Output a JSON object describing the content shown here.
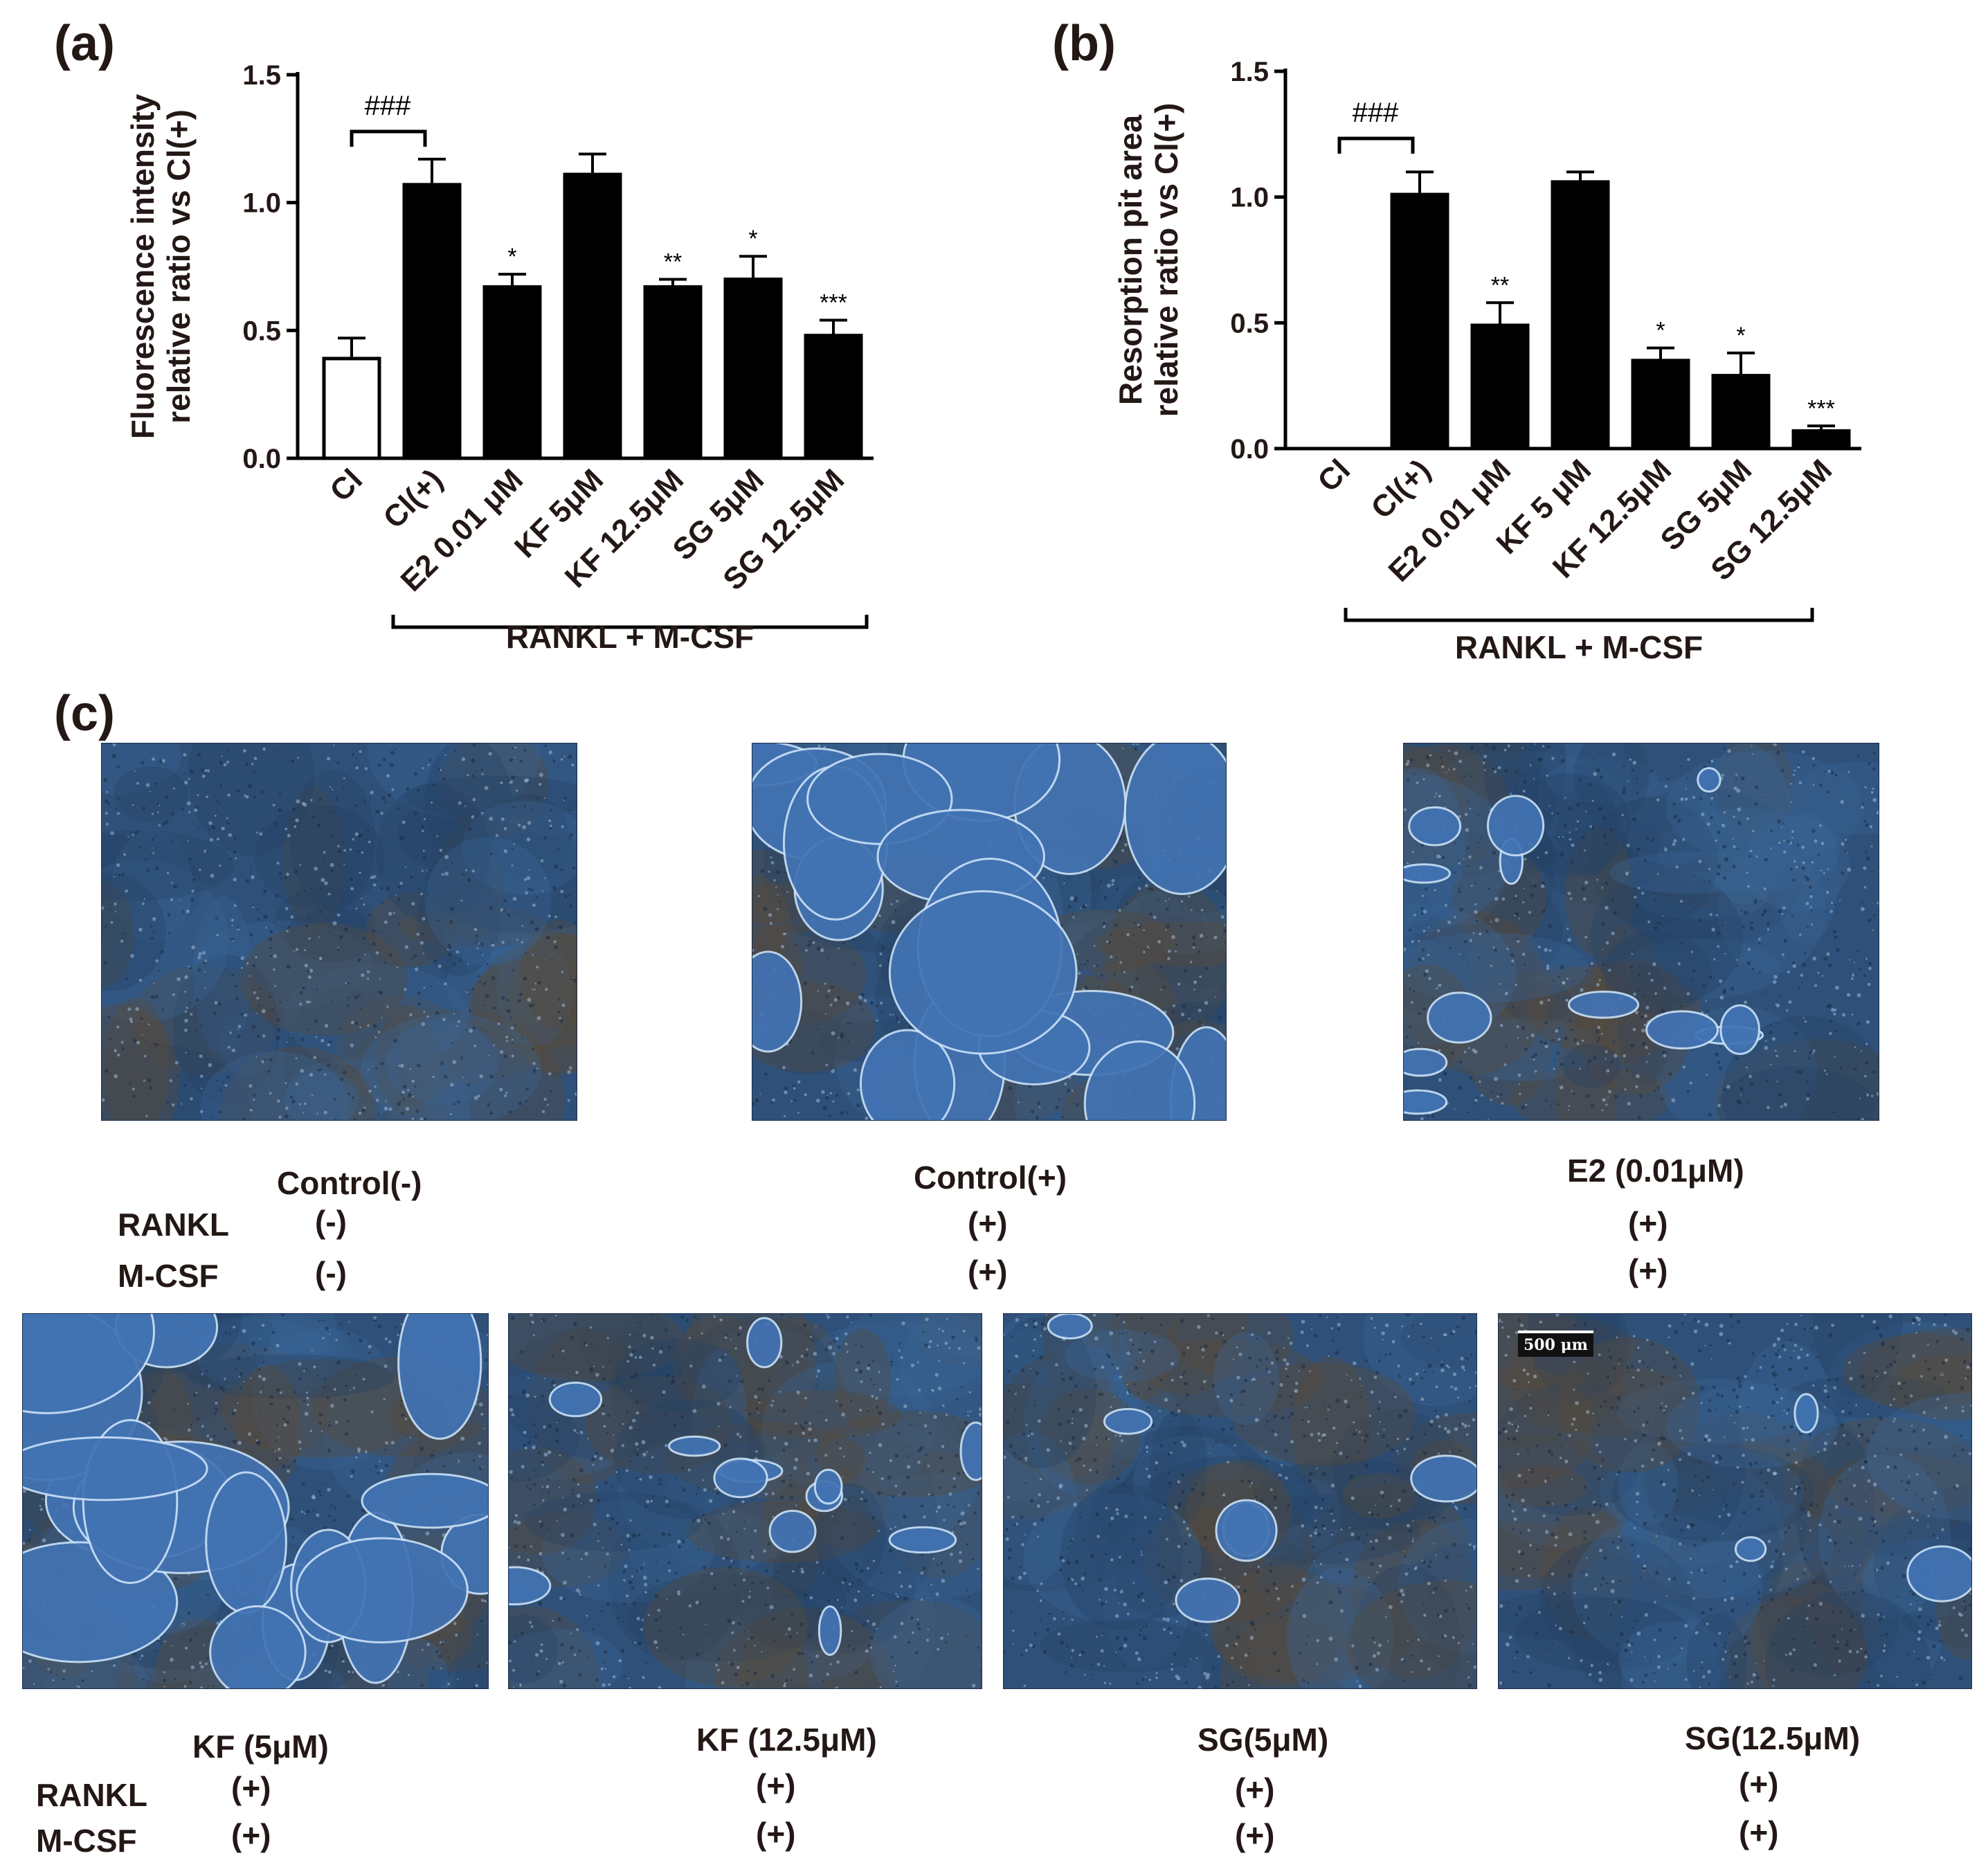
{
  "chart_data": [
    {
      "panel": "(a)",
      "type": "bar",
      "ylabel_line1": "Fluorescence intensity",
      "ylabel_line2": "relative ratio vs Cl(+)",
      "ylim": [
        0,
        1.5
      ],
      "yticks": [
        "0.0",
        "0.5",
        "1.0",
        "1.5"
      ],
      "categories": [
        "Cl",
        "Cl(+)",
        "E2 0.01 μM",
        "KF 5μM",
        "KF 12.5μM",
        "SG 5μM",
        "SG 12.5μM"
      ],
      "values": [
        0.39,
        1.07,
        0.67,
        1.11,
        0.67,
        0.7,
        0.48
      ],
      "errors": [
        0.08,
        0.1,
        0.05,
        0.08,
        0.03,
        0.09,
        0.06
      ],
      "fills": [
        "white",
        "black",
        "black",
        "black",
        "black",
        "black",
        "black"
      ],
      "sig_labels": [
        "",
        "",
        "*",
        "",
        "**",
        "*",
        "***"
      ],
      "bracket_label": "###",
      "group_label": "RANKL + M-CSF"
    },
    {
      "panel": "(b)",
      "type": "bar",
      "ylabel_line1": "Resorption pit area",
      "ylabel_line2": "relative ratio vs Cl(+)",
      "ylim": [
        0,
        1.5
      ],
      "yticks": [
        "0.0",
        "0.5",
        "1.0",
        "1.5"
      ],
      "categories": [
        "Cl",
        "Cl(+)",
        "E2 0.01 μM",
        "KF 5 μM",
        "KF 12.5μM",
        "SG 5μM",
        "SG 12.5μM"
      ],
      "values": [
        0.0,
        1.01,
        0.49,
        1.06,
        0.35,
        0.29,
        0.07
      ],
      "errors": [
        0.0,
        0.09,
        0.09,
        0.04,
        0.05,
        0.09,
        0.02
      ],
      "fills": [
        "black",
        "black",
        "black",
        "black",
        "black",
        "black",
        "black"
      ],
      "sig_labels": [
        "",
        "",
        "**",
        "",
        "*",
        "*",
        "***"
      ],
      "bracket_label": "###",
      "group_label": "RANKL + M-CSF"
    }
  ],
  "panel_c": {
    "letter": "(c)",
    "scale_bar": "500 μm",
    "row_labels": {
      "rankl": "RANKL",
      "mcsf": "M-CSF"
    },
    "images": [
      {
        "title": "Control(-)",
        "rankl": "(-)",
        "mcsf": "(-)",
        "pits": "none"
      },
      {
        "title": "Control(+)",
        "rankl": "(+)",
        "mcsf": "(+)",
        "pits": "extensive"
      },
      {
        "title": "E2 (0.01μM)",
        "rankl": "(+)",
        "mcsf": "(+)",
        "pits": "moderate"
      },
      {
        "title": "KF (5μM)",
        "rankl": "(+)",
        "mcsf": "(+)",
        "pits": "extensive"
      },
      {
        "title": "KF (12.5μM)",
        "rankl": "(+)",
        "mcsf": "(+)",
        "pits": "moderate"
      },
      {
        "title": "SG(5μM)",
        "rankl": "(+)",
        "mcsf": "(+)",
        "pits": "few"
      },
      {
        "title": "SG(12.5μM)",
        "rankl": "(+)",
        "mcsf": "(+)",
        "pits": "rare"
      }
    ]
  },
  "colors": {
    "ink": "#231815",
    "bar": "#000000",
    "micrograph_base": "#2e4d73",
    "pit": "#3f6fae",
    "pit_edge": "#b9d6f2"
  }
}
